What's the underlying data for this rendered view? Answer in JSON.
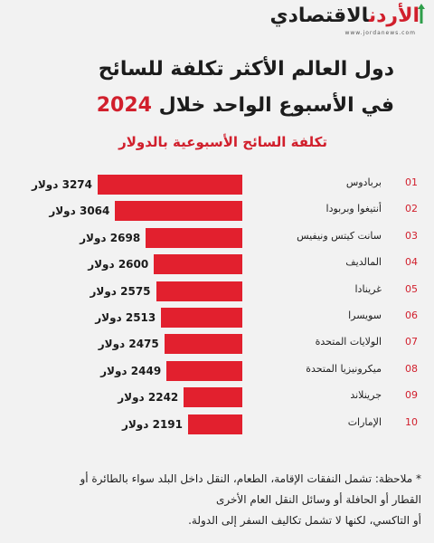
{
  "header": {
    "logo_text_red": "الأردن",
    "logo_text_dark": "الاقتصادي",
    "logo_url": "www.jordanews.com",
    "title_line1": "دول العالم الأكثر تكلفة للسائح",
    "title_line2_text": "في الأسبوع الواحد خلال",
    "title_line2_year": "2024",
    "subtitle": "تكلفة السائح الأسبوعية بالدولار"
  },
  "colors": {
    "accent": "#e2202e",
    "title_red": "#d11f2c",
    "background": "#f2f2f2"
  },
  "chart_data": {
    "type": "bar",
    "orientation": "horizontal",
    "title": "تكلفة السائح الأسبوعية بالدولار",
    "unit": "دولار",
    "categories": [
      "بربادوس",
      "أنتيغوا وبربودا",
      "سانت كيتس ونيفيس",
      "المالديف",
      "غرينادا",
      "سويسرا",
      "الولايات المتحدة",
      "ميكرونيزيا المتحدة",
      "جرينلاند",
      "الإمارات"
    ],
    "ranks": [
      "01",
      "02",
      "03",
      "04",
      "05",
      "06",
      "07",
      "08",
      "09",
      "10"
    ],
    "values": [
      3274,
      3064,
      2698,
      2600,
      2575,
      2513,
      2475,
      2449,
      2242,
      2191
    ],
    "value_labels": [
      "3274 دولار",
      "3064 دولار",
      "2698 دولار",
      "2600 دولار",
      "2575 دولار",
      "2513 دولار",
      "2475 دولار",
      "2449 دولار",
      "2242 دولار",
      "2191 دولار"
    ]
  },
  "note": {
    "line1": "* ملاحظة: تشمل النفقات الإقامة، الطعام، النقل داخل البلد سواء بالطائرة أو",
    "line2": "القطار أو الحافلة أو وسائل النقل العام الأخرى",
    "line3": "أو التاكسي، لكنها لا تشمل تكاليف السفر إلى الدولة."
  }
}
